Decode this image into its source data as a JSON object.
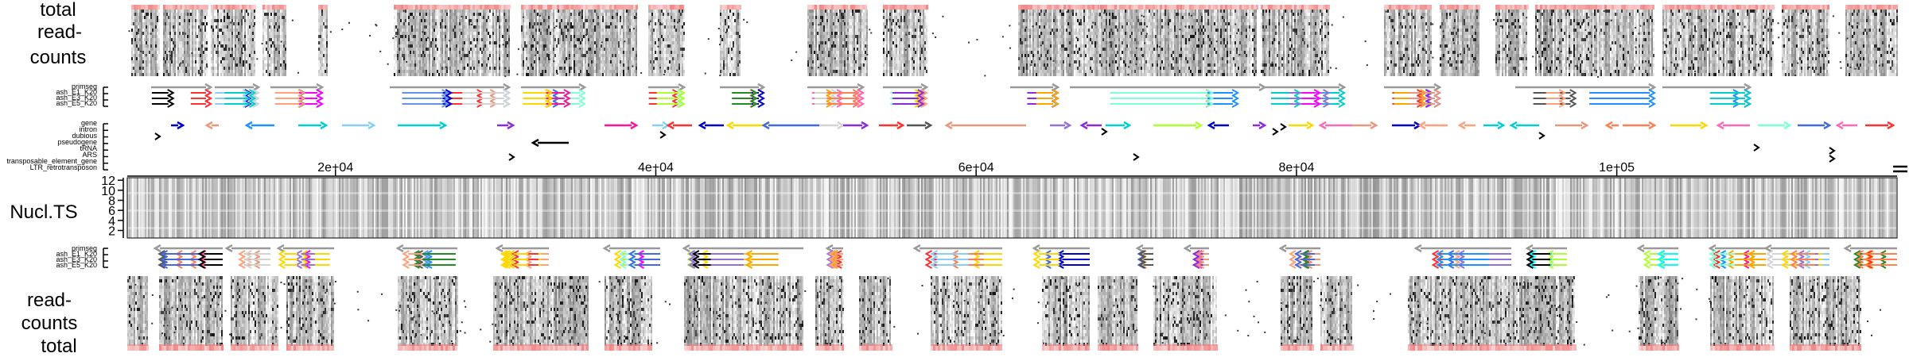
{
  "chart_data": [
    {
      "type": "heatmap",
      "panel": "top-read-counts",
      "ylabel_lines": [
        "total",
        "read-",
        "counts"
      ]
    },
    {
      "type": "segments",
      "panel": "top-transcripts",
      "track_labels": [
        "primseg",
        "ash_E1_K20",
        "ash_E3_K20",
        "ash_E5_K20"
      ]
    },
    {
      "type": "segments",
      "panel": "annotations",
      "track_labels": [
        "gene",
        "intron",
        "dubious",
        "pseudogene",
        "tRNA",
        "ARS",
        "transposable_element_gene",
        "LTR_retrotransposon"
      ]
    },
    {
      "type": "heatmap",
      "panel": "nucleotide-timeseries",
      "ylabel": "Nucl.TS",
      "x_ticks": [
        {
          "value": 20000,
          "label": "2e+04"
        },
        {
          "value": 40000,
          "label": "4e+04"
        },
        {
          "value": 60000,
          "label": "6e+04"
        },
        {
          "value": 80000,
          "label": "8e+04"
        },
        {
          "value": 100000,
          "label": "1e+05"
        }
      ],
      "xlim": [
        7000,
        117500
      ],
      "y_ticks": [
        2,
        4,
        6,
        8,
        10,
        12
      ],
      "ylim": [
        0.5,
        12.5
      ]
    },
    {
      "type": "segments",
      "panel": "bottom-transcripts",
      "track_labels": [
        "primseg",
        "ash_E1_K20",
        "ash_E3_K20",
        "ash_E5_K20"
      ]
    },
    {
      "type": "heatmap",
      "panel": "bottom-read-counts",
      "ylabel_lines": [
        "read-",
        "counts",
        "total"
      ]
    }
  ],
  "colors": {
    "total_bar": "#f08080",
    "tick": "#000000",
    "primseg": "#999999",
    "palette": [
      "#4169e1",
      "#6495ed",
      "#87cefa",
      "#ff3030",
      "#ff7f50",
      "#ffd700",
      "#9370db",
      "#7fffd4",
      "#ff69b4",
      "#adff2f",
      "#228b22",
      "#00ced1",
      "#ff00ff",
      "#e9967a",
      "#000000",
      "#555555",
      "#d3d3d3",
      "#1e90ff",
      "#ff1493",
      "#ffa500",
      "#8a2be2",
      "#00ffff",
      "#ffa07a",
      "#0000cd"
    ]
  }
}
